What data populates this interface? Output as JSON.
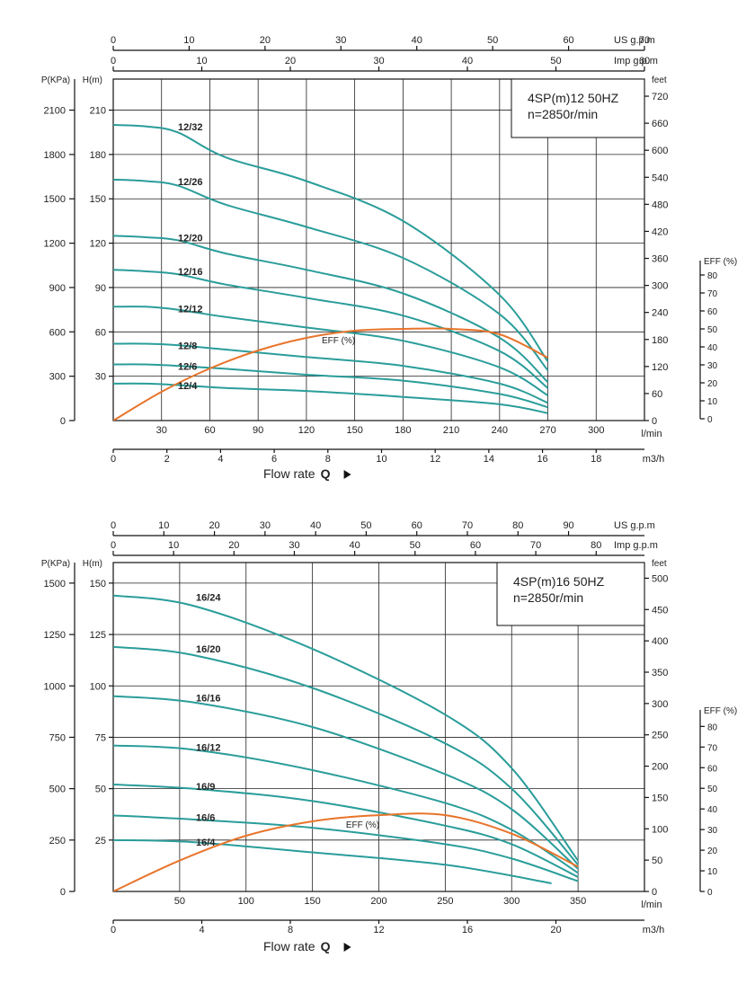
{
  "chart_data": [
    {
      "type": "line",
      "info_lines": [
        "4SP(m)12  50HZ",
        "n=2850r/min"
      ],
      "top_axes": [
        {
          "label": "US g.p.m",
          "ticks": [
            "0",
            "10",
            "20",
            "30",
            "40",
            "50",
            "60",
            "70"
          ],
          "range": [
            0,
            70
          ]
        },
        {
          "label": "Imp g.p.m",
          "ticks": [
            "0",
            "10",
            "20",
            "30",
            "40",
            "50",
            "60"
          ],
          "range": [
            0,
            60
          ]
        }
      ],
      "x_lmin": {
        "label": "l/min",
        "ticks": [
          "30",
          "60",
          "90",
          "120",
          "150",
          "180",
          "210",
          "240",
          "270",
          "300"
        ],
        "range": [
          0,
          330
        ]
      },
      "x_m3h": {
        "label": "m3/h",
        "ticks": [
          "0",
          "2",
          "4",
          "6",
          "8",
          "10",
          "12",
          "14",
          "16",
          "18"
        ]
      },
      "y_head": {
        "label": "H(m)",
        "ticks": [
          "30",
          "60",
          "90",
          "120",
          "150",
          "180",
          "210"
        ],
        "range": [
          0,
          231
        ]
      },
      "y_pressure": {
        "label": "P(KPa)",
        "ticks": [
          "0",
          "300",
          "600",
          "900",
          "1200",
          "1500",
          "1800",
          "2100"
        ]
      },
      "y_feet": {
        "label": "feet",
        "ticks": [
          "0",
          "60",
          "120",
          "180",
          "240",
          "300",
          "360",
          "420",
          "480",
          "540",
          "600",
          "660",
          "720"
        ]
      },
      "y_eff": {
        "label": "EFF (%)",
        "ticks": [
          "0",
          "10",
          "20",
          "30",
          "40",
          "50",
          "60",
          "70",
          "80"
        ],
        "range": [
          0,
          80
        ]
      },
      "flow_label": {
        "text": "Flow rate",
        "q": "Q"
      },
      "eff_label": "EFF (%)",
      "series": [
        {
          "name": "12/32",
          "x": [
            0,
            20,
            40,
            70,
            120,
            180,
            240,
            270
          ],
          "y": [
            200,
            199,
            195,
            178,
            162,
            135,
            85,
            40
          ]
        },
        {
          "name": "12/26",
          "x": [
            0,
            20,
            40,
            70,
            120,
            180,
            240,
            270
          ],
          "y": [
            163,
            162,
            159,
            146,
            131,
            110,
            72,
            34
          ]
        },
        {
          "name": "12/20",
          "x": [
            0,
            20,
            40,
            70,
            120,
            180,
            240,
            270
          ],
          "y": [
            125,
            124,
            122,
            113,
            102,
            86,
            56,
            26
          ]
        },
        {
          "name": "12/16",
          "x": [
            0,
            20,
            40,
            70,
            120,
            180,
            240,
            270
          ],
          "y": [
            102,
            101,
            99,
            92,
            83,
            71,
            47,
            22
          ]
        },
        {
          "name": "12/12",
          "x": [
            0,
            20,
            40,
            70,
            120,
            180,
            240,
            270
          ],
          "y": [
            77,
            77,
            75,
            70,
            63,
            54,
            36,
            17
          ]
        },
        {
          "name": "12/8",
          "x": [
            0,
            20,
            40,
            70,
            120,
            180,
            240,
            270
          ],
          "y": [
            52,
            52,
            51,
            48,
            43,
            37,
            25,
            12
          ]
        },
        {
          "name": "12/6",
          "x": [
            0,
            20,
            40,
            70,
            120,
            180,
            240,
            270
          ],
          "y": [
            38,
            38,
            37,
            35,
            31,
            27,
            18,
            9
          ]
        },
        {
          "name": "12/4",
          "x": [
            0,
            20,
            40,
            70,
            120,
            180,
            240,
            270
          ],
          "y": [
            25,
            25,
            24,
            22,
            20,
            16,
            11,
            5
          ]
        }
      ],
      "efficiency": {
        "x": [
          0,
          30,
          60,
          90,
          120,
          150,
          180,
          210,
          240,
          270
        ],
        "y": [
          0,
          16,
          29,
          39,
          46,
          50,
          51,
          51,
          48,
          35
        ]
      }
    },
    {
      "type": "line",
      "info_lines": [
        "4SP(m)16  50HZ",
        "n=2850r/min"
      ],
      "top_axes": [
        {
          "label": "US g.p.m",
          "ticks": [
            "0",
            "10",
            "20",
            "30",
            "40",
            "50",
            "60",
            "70",
            "80",
            "90"
          ],
          "range": [
            0,
            105
          ]
        },
        {
          "label": "Imp g.p.m",
          "ticks": [
            "0",
            "10",
            "20",
            "30",
            "40",
            "50",
            "60",
            "70",
            "80"
          ],
          "range": [
            0,
            88
          ]
        }
      ],
      "x_lmin": {
        "label": "l/min",
        "ticks": [
          "50",
          "100",
          "150",
          "200",
          "250",
          "300",
          "350"
        ],
        "range": [
          0,
          400
        ]
      },
      "x_m3h": {
        "label": "m3/h",
        "ticks": [
          "0",
          "4",
          "8",
          "12",
          "16",
          "20"
        ]
      },
      "y_head": {
        "label": "H(m)",
        "ticks": [
          "25",
          "50",
          "75",
          "100",
          "125",
          "150"
        ],
        "range": [
          0,
          160
        ]
      },
      "y_pressure": {
        "label": "P(KPa)",
        "ticks": [
          "0",
          "250",
          "500",
          "750",
          "1000",
          "1250",
          "1500"
        ]
      },
      "y_feet": {
        "label": "feet",
        "ticks": [
          "0",
          "50",
          "100",
          "150",
          "200",
          "250",
          "300",
          "350",
          "400",
          "450",
          "500"
        ]
      },
      "y_eff": {
        "label": "EFF (%)",
        "ticks": [
          "0",
          "10",
          "20",
          "30",
          "40",
          "50",
          "60",
          "70",
          "80"
        ],
        "range": [
          0,
          80
        ]
      },
      "flow_label": {
        "text": "Flow rate",
        "q": "Q"
      },
      "eff_label": "EFF (%)",
      "series": [
        {
          "name": "16/24",
          "x": [
            0,
            60,
            150,
            250,
            300,
            350
          ],
          "y": [
            144,
            139,
            118,
            86,
            60,
            15
          ]
        },
        {
          "name": "16/20",
          "x": [
            0,
            60,
            150,
            250,
            300,
            350
          ],
          "y": [
            119,
            115,
            99,
            72,
            50,
            13
          ]
        },
        {
          "name": "16/16",
          "x": [
            0,
            60,
            150,
            250,
            300,
            350
          ],
          "y": [
            95,
            92,
            80,
            57,
            40,
            11
          ]
        },
        {
          "name": "16/12",
          "x": [
            0,
            60,
            150,
            250,
            300,
            350
          ],
          "y": [
            71,
            69,
            59,
            43,
            30,
            9
          ]
        },
        {
          "name": "16/9",
          "x": [
            0,
            60,
            150,
            250,
            300,
            350
          ],
          "y": [
            52,
            50,
            44,
            32,
            23,
            7
          ]
        },
        {
          "name": "16/6",
          "x": [
            0,
            60,
            150,
            250,
            300,
            350
          ],
          "y": [
            37,
            35,
            31,
            23,
            16,
            5
          ]
        },
        {
          "name": "16/4",
          "x": [
            0,
            60,
            150,
            250,
            330
          ],
          "y": [
            25,
            24,
            19,
            13,
            4
          ]
        }
      ],
      "efficiency": {
        "x": [
          0,
          50,
          100,
          150,
          200,
          250,
          300,
          350
        ],
        "y": [
          0,
          15,
          27,
          34,
          37,
          37,
          28,
          12
        ]
      }
    }
  ]
}
